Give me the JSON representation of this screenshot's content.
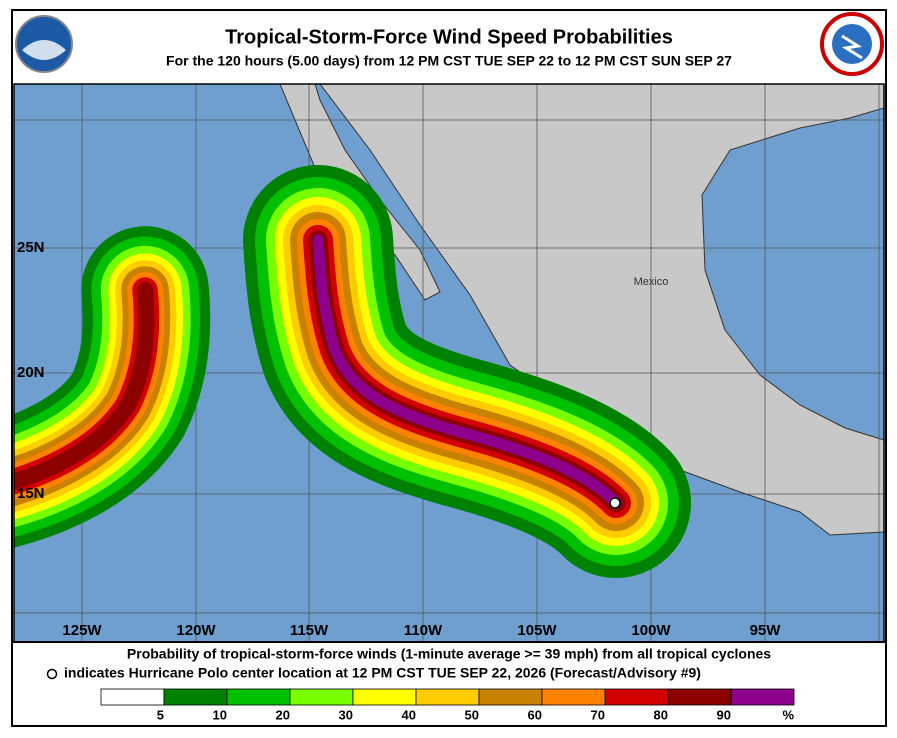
{
  "header": {
    "title": "Tropical-Storm-Force Wind Speed Probabilities",
    "subtitle": "For the 120 hours (5.00 days) from 12 PM CST TUE SEP 22 to 12 PM CST SUN SEP 27"
  },
  "map": {
    "lat_labels": [
      "25N",
      "20N",
      "15N"
    ],
    "lon_labels": [
      "125W",
      "120W",
      "115W",
      "110W",
      "105W",
      "100W",
      "95W"
    ],
    "place_label": "Mexico"
  },
  "footer": {
    "line1": "Probability of tropical-storm-force winds (1-minute average >= 39 mph) from all tropical cyclones",
    "line2": "indicates Hurricane Polo center location at 12 PM CST TUE SEP 22, 2026 (Forecast/Advisory #9)"
  },
  "legend": {
    "levels": [
      5,
      10,
      20,
      30,
      40,
      50,
      60,
      70,
      80,
      90
    ],
    "unit": "%",
    "colors": [
      "#ffffff",
      "#008200",
      "#00c000",
      "#78ff00",
      "#ffff00",
      "#ffcc00",
      "#c88200",
      "#ff8200",
      "#d20000",
      "#8c0000",
      "#8c008c"
    ]
  }
}
